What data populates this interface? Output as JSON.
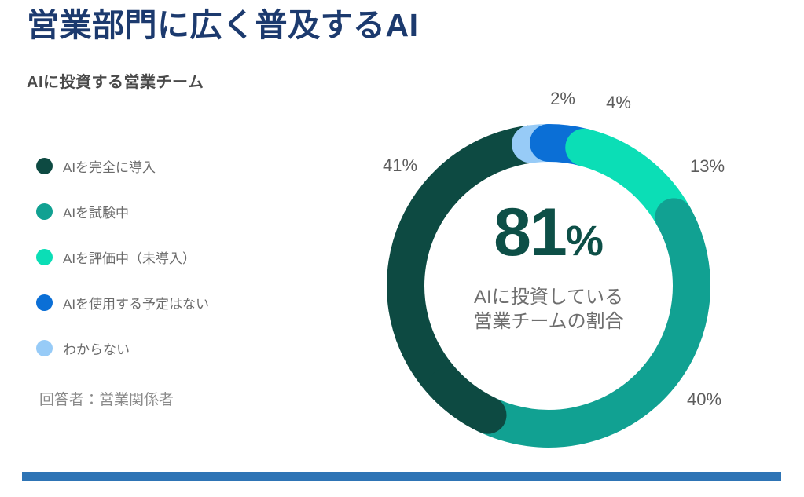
{
  "page": {
    "title": "営業部門に広く普及するAI",
    "subtitle": "AIに投資する営業チーム",
    "footnote": "回答者：営業関係者"
  },
  "colors": {
    "title": "#1c3a6e",
    "subtitle": "#4a4a4a",
    "legend_text": "#6b6b6b",
    "footnote_text": "#8a8a8a",
    "percent_labels": "#5c5c5c",
    "center_text": "#0d4f47",
    "center_caption": "#6e6e6e",
    "footer_bar": "#2e74b5",
    "background": "#ffffff"
  },
  "legend": {
    "items": [
      {
        "label": "AIを完全に導入",
        "color": "#0d4a42"
      },
      {
        "label": "AIを試験中",
        "color": "#11a192"
      },
      {
        "label": "AIを評価中（未導入）",
        "color": "#0bdeb6"
      },
      {
        "label": "AIを使用する予定はない",
        "color": "#0b6fd6"
      },
      {
        "label": "わからない",
        "color": "#97cbf7"
      }
    ]
  },
  "chart_data": {
    "type": "pie",
    "variant": "donut",
    "title": "AIに投資する営業チーム",
    "direction": "clockwise",
    "start_angle_deg": 0,
    "legend_position": "left",
    "segments": [
      {
        "label": "AIを使用する予定はない",
        "value": 4,
        "display": "4%",
        "color": "#0b6fd6"
      },
      {
        "label": "AIを評価中（未導入）",
        "value": 13,
        "display": "13%",
        "color": "#0bdeb6"
      },
      {
        "label": "AIを試験中",
        "value": 40,
        "display": "40%",
        "color": "#11a192"
      },
      {
        "label": "AIを完全に導入",
        "value": 41,
        "display": "41%",
        "color": "#0d4a42"
      },
      {
        "label": "わからない",
        "value": 2,
        "display": "2%",
        "color": "#97cbf7"
      }
    ],
    "center": {
      "value": "81",
      "unit": "%",
      "caption_line1": "AIに投資している",
      "caption_line2": "営業チームの割合"
    }
  }
}
